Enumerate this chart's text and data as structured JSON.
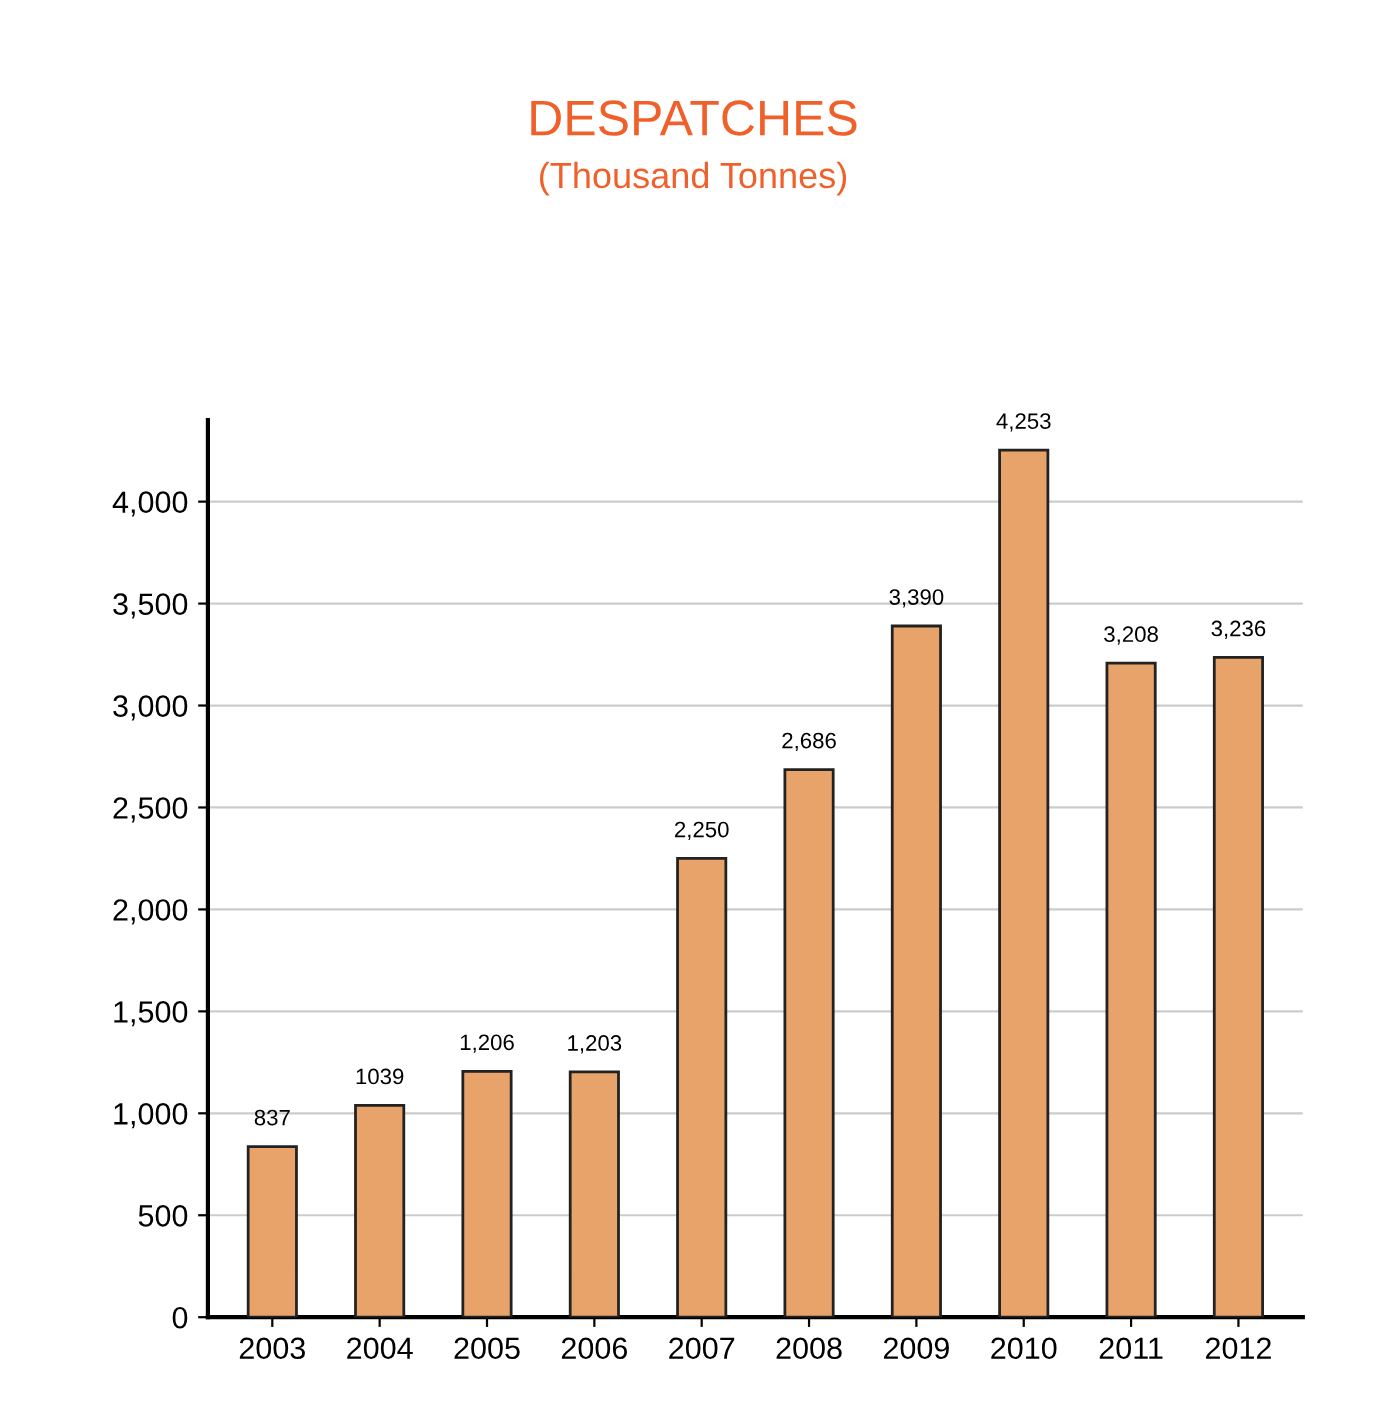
{
  "chart_data": {
    "type": "bar",
    "title": "DESPATCHES",
    "subtitle": "(Thousand Tonnes)",
    "categories": [
      "2003",
      "2004",
      "2005",
      "2006",
      "2007",
      "2008",
      "2009",
      "2010",
      "2011",
      "2012"
    ],
    "values": [
      837,
      1039,
      1206,
      1203,
      2250,
      2686,
      3390,
      4253,
      3208,
      3236
    ],
    "value_labels": [
      "837",
      "1039",
      "1,206",
      "1,203",
      "2,250",
      "2,686",
      "3,390",
      "4,253",
      "3,208",
      "3,236"
    ],
    "color": "#e8a36a",
    "ylim": [
      0,
      4400
    ],
    "yticks": [
      0,
      {
        "value": 500,
        "label": "500"
      },
      {
        "value": 1000,
        "label": "1,000"
      },
      {
        "value": 1500,
        "label": "1,500"
      },
      {
        "value": 2000,
        "label": "2,000"
      },
      {
        "value": 2500,
        "label": "2,500"
      },
      {
        "value": 3000,
        "label": "3,000"
      },
      {
        "value": 3500,
        "label": "3,500"
      },
      {
        "value": 4000,
        "label": "4,000"
      }
    ],
    "grid": "y",
    "legend": false
  }
}
